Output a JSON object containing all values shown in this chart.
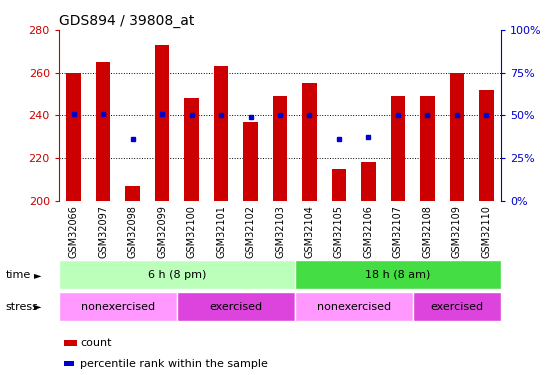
{
  "title": "GDS894 / 39808_at",
  "samples": [
    "GSM32066",
    "GSM32097",
    "GSM32098",
    "GSM32099",
    "GSM32100",
    "GSM32101",
    "GSM32102",
    "GSM32103",
    "GSM32104",
    "GSM32105",
    "GSM32106",
    "GSM32107",
    "GSM32108",
    "GSM32109",
    "GSM32110"
  ],
  "counts": [
    260,
    265,
    207,
    273,
    248,
    263,
    237,
    249,
    255,
    215,
    218,
    249,
    249,
    260,
    252
  ],
  "percentiles": [
    51,
    51,
    36,
    51,
    50,
    50,
    49,
    50,
    50,
    36,
    37,
    50,
    50,
    50,
    50
  ],
  "ylim_left": [
    200,
    280
  ],
  "ylim_right": [
    0,
    100
  ],
  "yticks_left": [
    200,
    220,
    240,
    260,
    280
  ],
  "yticks_right": [
    0,
    25,
    50,
    75,
    100
  ],
  "bar_color": "#cc0000",
  "dot_color": "#0000cc",
  "bar_width": 0.5,
  "time_groups": [
    {
      "label": "6 h (8 pm)",
      "start": 0,
      "end": 7,
      "color": "#bbffbb"
    },
    {
      "label": "18 h (8 am)",
      "start": 8,
      "end": 14,
      "color": "#44dd44"
    }
  ],
  "stress_groups": [
    {
      "label": "nonexercised",
      "start": 0,
      "end": 3,
      "color": "#ff99ff"
    },
    {
      "label": "exercised",
      "start": 4,
      "end": 7,
      "color": "#dd44dd"
    },
    {
      "label": "nonexercised",
      "start": 8,
      "end": 11,
      "color": "#ff99ff"
    },
    {
      "label": "exercised",
      "start": 12,
      "end": 14,
      "color": "#dd44dd"
    }
  ],
  "grid_color": "#000000",
  "plot_bg": "#ffffff",
  "xtick_bg": "#cccccc",
  "left_axis_color": "#cc0000",
  "right_axis_color": "#0000cc",
  "title_fontsize": 10,
  "tick_fontsize": 7,
  "label_fontsize": 8,
  "legend_fontsize": 8
}
